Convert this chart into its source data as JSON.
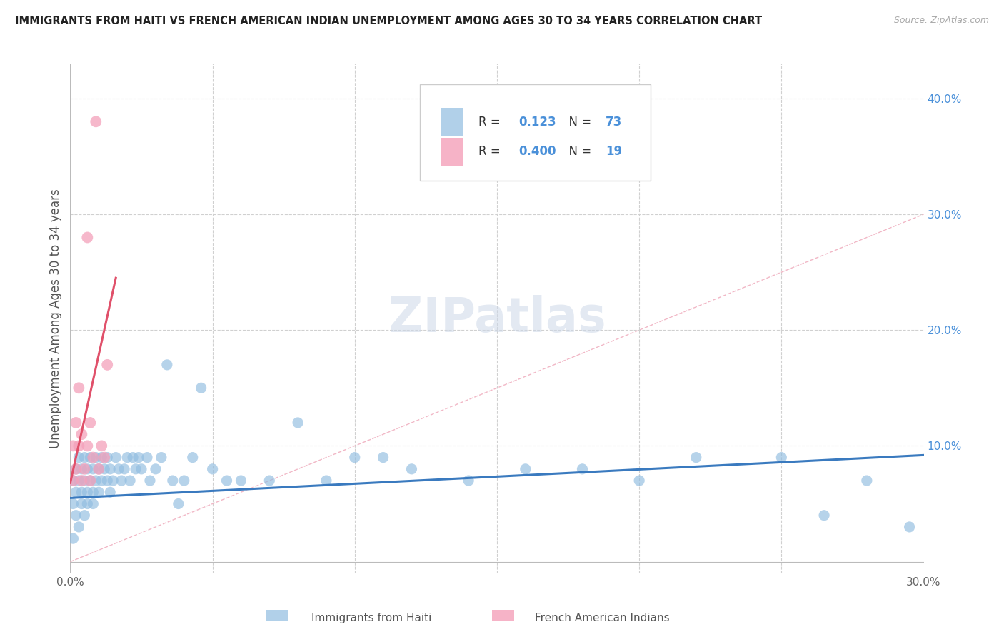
{
  "title": "IMMIGRANTS FROM HAITI VS FRENCH AMERICAN INDIAN UNEMPLOYMENT AMONG AGES 30 TO 34 YEARS CORRELATION CHART",
  "source": "Source: ZipAtlas.com",
  "ylabel": "Unemployment Among Ages 30 to 34 years",
  "xlim": [
    0,
    0.3
  ],
  "ylim": [
    -0.01,
    0.43
  ],
  "haiti_R": 0.123,
  "haiti_N": 73,
  "french_R": 0.4,
  "french_N": 19,
  "haiti_color": "#90bce0",
  "french_color": "#f4a0ba",
  "haiti_line_color": "#3a7abf",
  "french_line_color": "#e0506a",
  "ref_line_color": "#f0b0c0",
  "background_color": "#ffffff",
  "grid_color": "#d0d0d0",
  "haiti_scatter_x": [
    0.001,
    0.001,
    0.001,
    0.002,
    0.002,
    0.002,
    0.003,
    0.003,
    0.003,
    0.004,
    0.004,
    0.004,
    0.005,
    0.005,
    0.005,
    0.006,
    0.006,
    0.006,
    0.007,
    0.007,
    0.008,
    0.008,
    0.008,
    0.009,
    0.009,
    0.01,
    0.01,
    0.011,
    0.011,
    0.012,
    0.013,
    0.013,
    0.014,
    0.014,
    0.015,
    0.016,
    0.017,
    0.018,
    0.019,
    0.02,
    0.021,
    0.022,
    0.023,
    0.024,
    0.025,
    0.027,
    0.028,
    0.03,
    0.032,
    0.034,
    0.036,
    0.038,
    0.04,
    0.043,
    0.046,
    0.05,
    0.055,
    0.06,
    0.07,
    0.08,
    0.09,
    0.1,
    0.11,
    0.12,
    0.14,
    0.16,
    0.18,
    0.2,
    0.22,
    0.25,
    0.265,
    0.28,
    0.295
  ],
  "haiti_scatter_y": [
    0.05,
    0.07,
    0.02,
    0.06,
    0.08,
    0.04,
    0.07,
    0.03,
    0.09,
    0.05,
    0.08,
    0.06,
    0.07,
    0.04,
    0.09,
    0.06,
    0.08,
    0.05,
    0.07,
    0.09,
    0.06,
    0.08,
    0.05,
    0.07,
    0.09,
    0.06,
    0.08,
    0.07,
    0.09,
    0.08,
    0.07,
    0.09,
    0.08,
    0.06,
    0.07,
    0.09,
    0.08,
    0.07,
    0.08,
    0.09,
    0.07,
    0.09,
    0.08,
    0.09,
    0.08,
    0.09,
    0.07,
    0.08,
    0.09,
    0.17,
    0.07,
    0.05,
    0.07,
    0.09,
    0.15,
    0.08,
    0.07,
    0.07,
    0.07,
    0.12,
    0.07,
    0.09,
    0.09,
    0.08,
    0.07,
    0.08,
    0.08,
    0.07,
    0.09,
    0.09,
    0.04,
    0.07,
    0.03
  ],
  "french_scatter_x": [
    0.001,
    0.001,
    0.002,
    0.002,
    0.003,
    0.003,
    0.004,
    0.004,
    0.005,
    0.006,
    0.006,
    0.007,
    0.007,
    0.008,
    0.009,
    0.01,
    0.011,
    0.012,
    0.013
  ],
  "french_scatter_y": [
    0.07,
    0.1,
    0.08,
    0.12,
    0.1,
    0.15,
    0.07,
    0.11,
    0.08,
    0.1,
    0.28,
    0.12,
    0.07,
    0.09,
    0.38,
    0.08,
    0.1,
    0.09,
    0.17
  ],
  "haiti_trend_x": [
    0.0,
    0.3
  ],
  "haiti_trend_y": [
    0.055,
    0.092
  ],
  "french_trend_x": [
    0.0,
    0.016
  ],
  "french_trend_y": [
    0.068,
    0.245
  ]
}
